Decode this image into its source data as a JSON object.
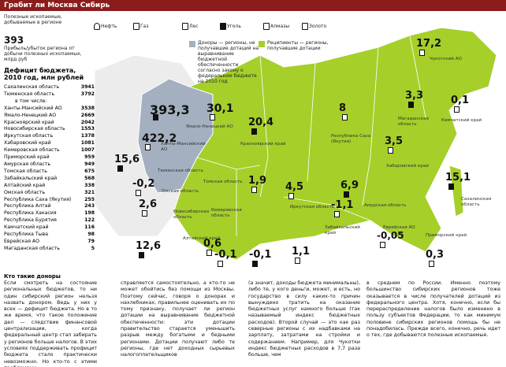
{
  "header": {
    "title": "Грабит ли Москва Сибирь"
  },
  "legend": {
    "intro": "Полезные ископаемые, добываемые в регионе",
    "items": [
      "Нефть",
      "Газ",
      "Лес",
      "Уголь",
      "Алмазы",
      "Золото"
    ],
    "profit_value": "393",
    "profit_caption": "Прибыль/убыток региона от добычи полезных ископаемых, млрд руб",
    "donors": "Доноры — регионы, не получавшие дотаций на выравнивание бюджетной обеспеченности согласно закону о федеральном бюджете на 2010 год",
    "recipients": "Реципиенты — регионы, получавшие дотации"
  },
  "table": {
    "title": "Дефицит бюджета, 2010 год, млн рублей",
    "rows": [
      [
        "Сахалинская область",
        "3941"
      ],
      [
        "Тюменская область",
        "3792"
      ],
      [
        "в том числе:",
        ""
      ],
      [
        "Ханты-Мансийский АО",
        "3538"
      ],
      [
        "Ямало-Ненецкий АО",
        "2669"
      ],
      [
        "Красноярский край",
        "2042"
      ],
      [
        "Новосибирская область",
        "1553"
      ],
      [
        "Иркутская область",
        "1378"
      ],
      [
        "Хабаровский край",
        "1081"
      ],
      [
        "Кемеровская область",
        "1007"
      ],
      [
        "Приморский край",
        "959"
      ],
      [
        "Амурская область",
        "949"
      ],
      [
        "Томская область",
        "675"
      ],
      [
        "Забайкальский край",
        "568"
      ],
      [
        "Алтайский край",
        "338"
      ],
      [
        "Омская область",
        "321"
      ],
      [
        "Республика Саха (Якутия)",
        "255"
      ],
      [
        "Республика Алтай",
        "243"
      ],
      [
        "Республика Хакасия",
        "198"
      ],
      [
        "Республика Бурятия",
        "122"
      ],
      [
        "Камчатский край",
        "116"
      ],
      [
        "Республика Тыва",
        "98"
      ],
      [
        "Еврейская АО",
        "79"
      ],
      [
        "Магаданская область",
        "5"
      ]
    ]
  },
  "map": {
    "values": [
      "393,3",
      "30,1",
      "422,2",
      "15,6",
      "-0,2",
      "2,6",
      "12,6",
      "0,6",
      "-0,1",
      "-0,1",
      "1,1",
      "1,9",
      "20,4",
      "4,5",
      "-1,1",
      "6,9",
      "8",
      "17,2",
      "3,3",
      "0,1",
      "3,5",
      "15,1",
      "-0,05",
      "0,3"
    ],
    "regions": [
      "Чукотский АО",
      "Магаданская область",
      "Камчатский край",
      "Хабаровский край",
      "Сахалинская область",
      "Амурская область",
      "Еврейская АО",
      "Приморский край",
      "Забайкальский край",
      "Иркутская область",
      "Красноярский край",
      "Республика Саха (Якутия)",
      "Томская область",
      "Кемеровская область",
      "Новосибирская область",
      "Омская область",
      "Тюменская область",
      "Ханты-Мансийский АО",
      "Ямало-Ненецкий АО",
      "Алтайский край"
    ]
  },
  "article": {
    "heading": "Кто такие доноры",
    "columns": [
      "Если смотреть на состояние региональных бюджетов, то ни один сибирский регион нельзя назвать донором. Ведь у них у всех — дефицит бюджета. Но в то же время, что такое положение дел — следствие финансовой централизации, когда федеральный центр стал забирать у регионов больше налогов. В этих условиях поддерживать профицит бюджета стало практически невозможно. Но кто-то с этими проблемами",
      "справляется самостоятельно, а кто-то не может обойтись без помощи из Москвы. Поэтому сейчас, говоря о донорах и нахлебниках, правильнее оценивать их по тому признаку, получает ли регион дотации на выравнивание бюджетной обеспеченности: эти дотации правительство старается уменьшить разрыв между богатыми и бедными регионами. Дотации получают либо те регионы, где нет доходных сырьевых налогоплательщиков",
      "(а значит, доходы бюджета минимальны), либо те, у кого деньги, может, и есть, но государство в силу каких-то причин вынуждено тратить на оказание бюджетных услуг намного больше (так называемый индекс бюджетных расходов). Второй случай — это как раз северные регионы с их надбавками на зарплату, затратами на стройки и содержанием. Например, для Чукотки индекс бюджетных расходов в 7,7 раза больше, чем",
      "в среднем по России. Именно поэтому большинство сибирских регионов тоже оказывается в числе получателей дотаций из федерального центра. Хотя, конечно, если бы перераспределение налогов было изменено в пользу субъектов Федерации, то как минимум половине сибирских регионов помощь бы не понадобилась. Прежде всего, конечно, речь идет о тех, где добываются полезные ископаемые."
    ]
  }
}
